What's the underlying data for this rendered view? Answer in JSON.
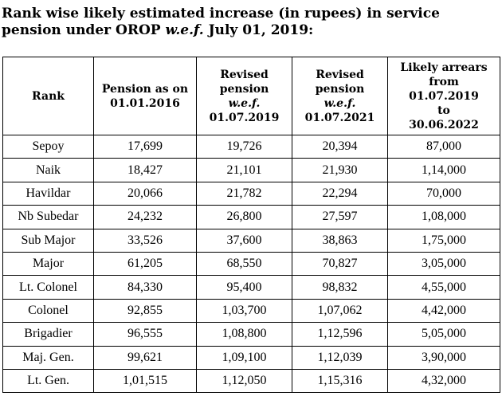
{
  "heading": {
    "part1": "Rank wise likely estimated increase (in rupees) in service pension under OROP ",
    "italic": "w.e.f.",
    "part2": " July 01, 2019:"
  },
  "table": {
    "headers": {
      "rank": "Rank",
      "pension_2016": {
        "line1": "Pension as on",
        "line2": "01.01.2016"
      },
      "revised_2019": {
        "line1": "Revised",
        "line2": "pension",
        "italic": "w.e.f.",
        "line3": "01.07.2019"
      },
      "revised_2021": {
        "line1": "Revised",
        "line2": "pension",
        "italic": "w.e.f.",
        "line3": "01.07.2021"
      },
      "arrears": {
        "line1": "Likely arrears",
        "line2": "from",
        "line3": "01.07.2019",
        "line4": "to",
        "line5": "30.06.2022"
      }
    },
    "rows": [
      {
        "rank": "Sepoy",
        "pension_2016": "17,699",
        "revised_2019": "19,726",
        "revised_2021": "20,394",
        "arrears": "87,000"
      },
      {
        "rank": "Naik",
        "pension_2016": "18,427",
        "revised_2019": "21,101",
        "revised_2021": "21,930",
        "arrears": "1,14,000"
      },
      {
        "rank": "Havildar",
        "pension_2016": "20,066",
        "revised_2019": "21,782",
        "revised_2021": "22,294",
        "arrears": "70,000"
      },
      {
        "rank": "Nb Subedar",
        "pension_2016": "24,232",
        "revised_2019": "26,800",
        "revised_2021": "27,597",
        "arrears": "1,08,000"
      },
      {
        "rank": "Sub Major",
        "pension_2016": "33,526",
        "revised_2019": "37,600",
        "revised_2021": "38,863",
        "arrears": "1,75,000"
      },
      {
        "rank": "Major",
        "pension_2016": "61,205",
        "revised_2019": "68,550",
        "revised_2021": "70,827",
        "arrears": "3,05,000"
      },
      {
        "rank": "Lt. Colonel",
        "pension_2016": "84,330",
        "revised_2019": "95,400",
        "revised_2021": "98,832",
        "arrears": "4,55,000"
      },
      {
        "rank": "Colonel",
        "pension_2016": "92,855",
        "revised_2019": "1,03,700",
        "revised_2021": "1,07,062",
        "arrears": "4,42,000"
      },
      {
        "rank": "Brigadier",
        "pension_2016": "96,555",
        "revised_2019": "1,08,800",
        "revised_2021": "1,12,596",
        "arrears": "5,05,000"
      },
      {
        "rank": "Maj. Gen.",
        "pension_2016": "99,621",
        "revised_2019": "1,09,100",
        "revised_2021": "1,12,039",
        "arrears": "3,90,000"
      },
      {
        "rank": "Lt. Gen.",
        "pension_2016": "1,01,515",
        "revised_2019": "1,12,050",
        "revised_2021": "1,15,316",
        "arrears": "4,32,000"
      }
    ]
  }
}
